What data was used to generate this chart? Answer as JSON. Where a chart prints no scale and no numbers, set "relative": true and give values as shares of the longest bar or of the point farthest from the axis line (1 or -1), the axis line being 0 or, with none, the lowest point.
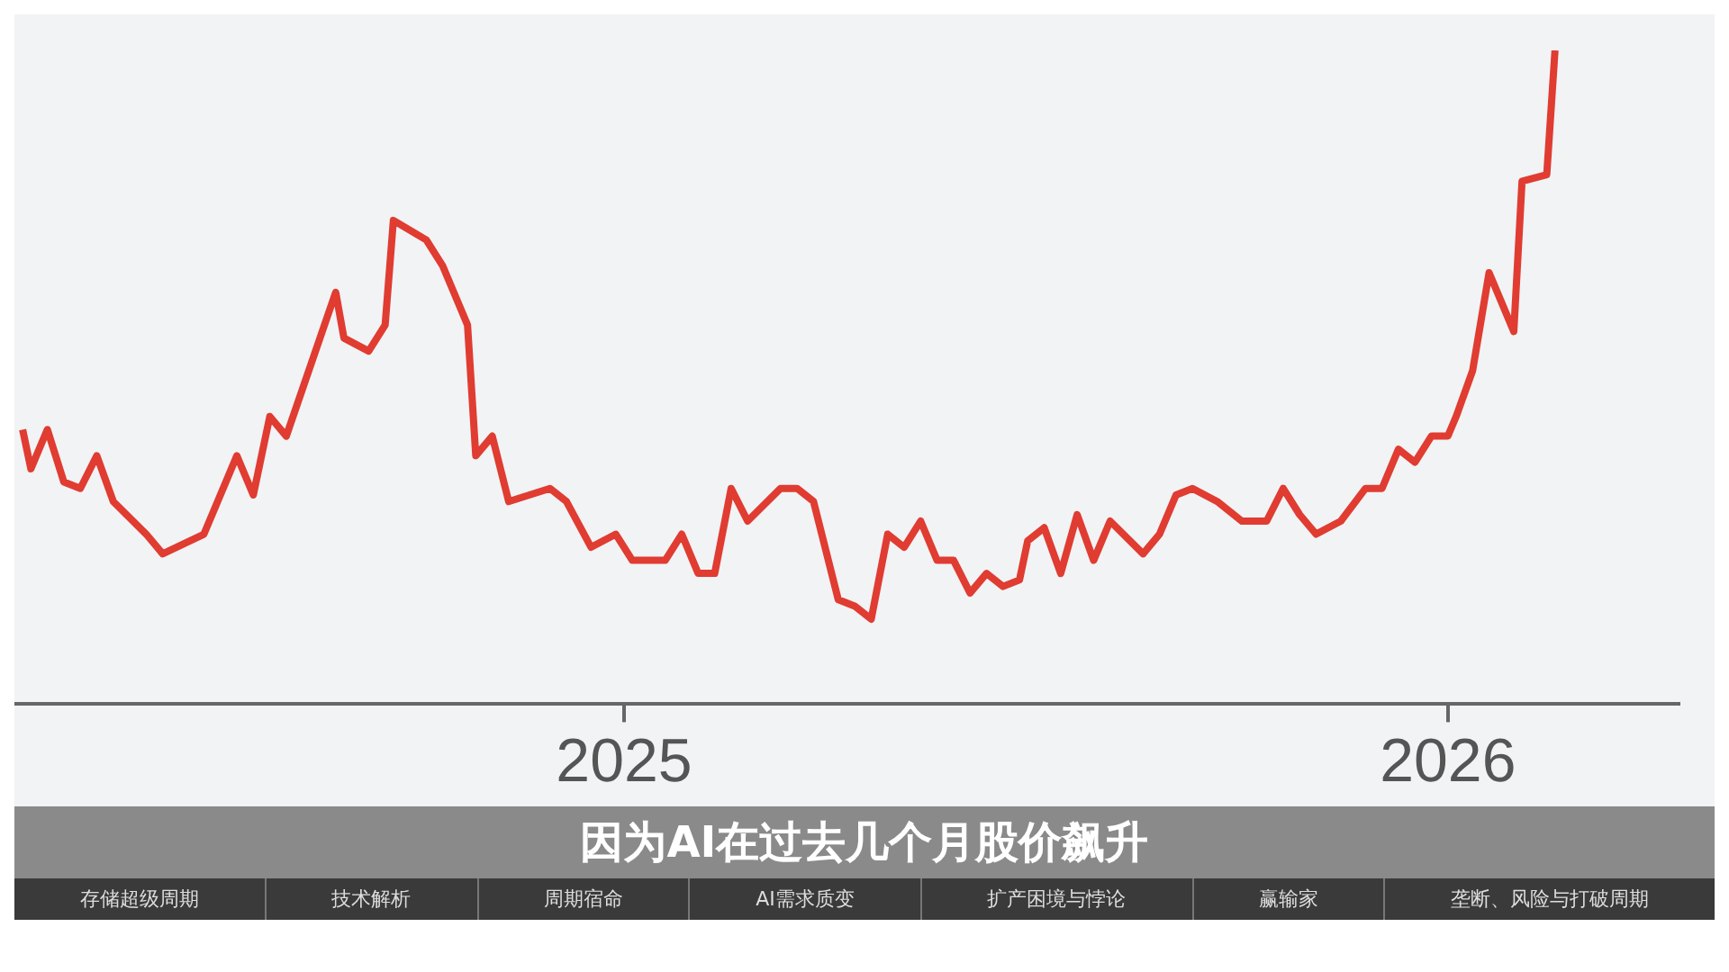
{
  "chart_data": {
    "type": "line",
    "relative": true,
    "x": [
      2024.27,
      2024.28,
      2024.3,
      2024.32,
      2024.34,
      2024.36,
      2024.38,
      2024.42,
      2024.44,
      2024.49,
      2024.53,
      2024.55,
      2024.57,
      2024.59,
      2024.65,
      2024.66,
      2024.69,
      2024.71,
      2024.72,
      2024.76,
      2024.78,
      2024.81,
      2024.82,
      2024.84,
      2024.86,
      2024.91,
      2024.93,
      2024.96,
      2024.99,
      2025.01,
      2025.05,
      2025.07,
      2025.09,
      2025.11,
      2025.13,
      2025.15,
      2025.19,
      2025.21,
      2025.23,
      2025.26,
      2025.28,
      2025.3,
      2025.32,
      2025.34,
      2025.36,
      2025.38,
      2025.4,
      2025.42,
      2025.44,
      2025.46,
      2025.48,
      2025.49,
      2025.51,
      2025.53,
      2025.55,
      2025.57,
      2025.59,
      2025.63,
      2025.65,
      2025.67,
      2025.69,
      2025.72,
      2025.75,
      2025.78,
      2025.8,
      2025.82,
      2025.84,
      2025.87,
      2025.9,
      2025.92,
      2025.94,
      2025.96,
      2025.98,
      2026.0,
      2026.01,
      2026.03,
      2026.05,
      2026.08,
      2026.09,
      2026.12,
      2026.13
    ],
    "series": [
      {
        "color": "#e03c31",
        "values": [
          0.42,
          0.36,
          0.42,
          0.34,
          0.33,
          0.38,
          0.31,
          0.26,
          0.23,
          0.26,
          0.38,
          0.32,
          0.44,
          0.41,
          0.63,
          0.56,
          0.54,
          0.58,
          0.74,
          0.71,
          0.67,
          0.58,
          0.38,
          0.41,
          0.31,
          0.33,
          0.31,
          0.24,
          0.26,
          0.22,
          0.22,
          0.26,
          0.2,
          0.2,
          0.33,
          0.28,
          0.33,
          0.33,
          0.31,
          0.16,
          0.15,
          0.13,
          0.26,
          0.24,
          0.28,
          0.22,
          0.22,
          0.17,
          0.2,
          0.18,
          0.19,
          0.25,
          0.27,
          0.2,
          0.29,
          0.22,
          0.28,
          0.23,
          0.26,
          0.32,
          0.33,
          0.31,
          0.28,
          0.28,
          0.33,
          0.29,
          0.26,
          0.28,
          0.33,
          0.33,
          0.39,
          0.37,
          0.41,
          0.41,
          0.44,
          0.51,
          0.66,
          0.57,
          0.8,
          0.81,
          1.0
        ]
      }
    ],
    "xlim": [
      2024.26,
      2026.28
    ],
    "xticks": [
      2025,
      2026
    ],
    "annotations": [
      "因为AI在过去几个月股价飙升",
      "存储超级周期",
      "技术解析",
      "周期宿命",
      "AI需求质变",
      "扩产困境与悖论",
      "赢输家",
      "垄断、风险与打破周期"
    ]
  }
}
